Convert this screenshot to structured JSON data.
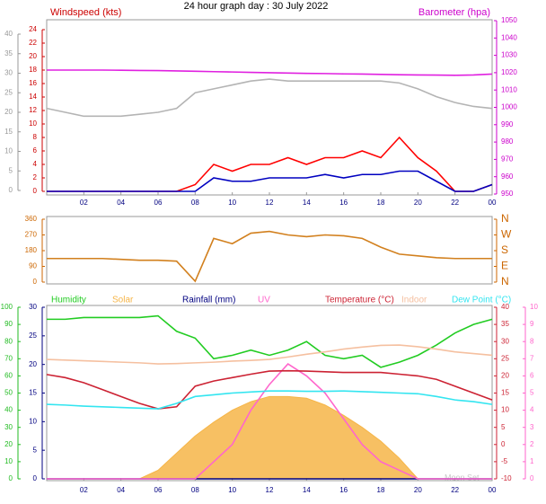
{
  "chart_data": [
    {
      "type": "line",
      "title": "24 hour graph day : 30 July 2022",
      "ylabel": "Windspeed (kts)",
      "y2label": "Barometer (hpa)",
      "x": [
        0,
        1,
        2,
        3,
        4,
        5,
        6,
        7,
        8,
        9,
        10,
        11,
        12,
        13,
        14,
        15,
        16,
        17,
        18,
        19,
        20,
        21,
        22,
        23,
        24
      ],
      "xlim": [
        0,
        24
      ],
      "xticks": [
        {
          "value": 2,
          "label": "02"
        },
        {
          "value": 4,
          "label": "04"
        },
        {
          "value": 6,
          "label": "06"
        },
        {
          "value": 8,
          "label": "08"
        },
        10,
        12,
        14,
        16,
        18,
        20,
        22,
        {
          "value": 24,
          "label": "00"
        }
      ],
      "ylim": [
        0,
        24
      ],
      "yticks": [
        0,
        2,
        4,
        6,
        8,
        10,
        12,
        14,
        16,
        18,
        20,
        22,
        24
      ],
      "y2lim": [
        950,
        1050
      ],
      "y2ticks": [
        950,
        960,
        970,
        980,
        990,
        1000,
        1010,
        1020,
        1030,
        1040,
        1050
      ],
      "y3lim": [
        0,
        40
      ],
      "y3ticks": [
        0,
        5,
        10,
        15,
        20,
        25,
        30,
        35,
        40
      ],
      "series": [
        {
          "color": "#b4b4b4",
          "axis": "y3",
          "values": [
            21,
            20,
            19,
            19,
            19,
            19.5,
            20,
            21,
            25,
            26,
            27,
            28,
            28.5,
            28,
            28,
            28,
            28,
            28,
            28,
            27.5,
            26,
            24,
            22.5,
            21.5,
            21
          ]
        },
        {
          "color": "#e020e0",
          "axis": "y2",
          "values": [
            1021.5,
            1021.5,
            1021.5,
            1021.5,
            1021.4,
            1021.3,
            1021.2,
            1021,
            1020.8,
            1020.6,
            1020.4,
            1020.2,
            1020,
            1019.8,
            1019.6,
            1019.5,
            1019.3,
            1019.2,
            1019,
            1018.8,
            1018.7,
            1018.6,
            1018.5,
            1018.7,
            1019.2
          ]
        },
        {
          "color": "#ff0000",
          "values": [
            0,
            0,
            0,
            0,
            0,
            0,
            0,
            0,
            1,
            4,
            3,
            4,
            4,
            5,
            4,
            5,
            5,
            6,
            5,
            8,
            5,
            3,
            0,
            0,
            1
          ]
        },
        {
          "color": "#0000c0",
          "values": [
            0,
            0,
            0,
            0,
            0,
            0,
            0,
            0,
            0,
            2,
            1.5,
            1.5,
            2,
            2,
            2,
            2.5,
            2,
            2.5,
            2.5,
            3,
            3,
            1.5,
            0,
            0,
            1
          ]
        }
      ]
    },
    {
      "type": "line",
      "x": [
        0,
        1,
        2,
        3,
        4,
        5,
        6,
        7,
        8,
        9,
        10,
        11,
        12,
        13,
        14,
        15,
        16,
        17,
        18,
        19,
        20,
        21,
        22,
        23,
        24
      ],
      "xlim": [
        0,
        24
      ],
      "ylim": [
        0,
        360
      ],
      "yticks": [
        0,
        90,
        180,
        270,
        360
      ],
      "y2lim": [
        0,
        360
      ],
      "y2ticks": [
        {
          "value": 0,
          "label": "N"
        },
        {
          "value": 90,
          "label": "E"
        },
        {
          "value": 180,
          "label": "S"
        },
        {
          "value": 270,
          "label": "W"
        },
        {
          "value": 360,
          "label": "N"
        }
      ],
      "series": [
        {
          "color": "#d2801e",
          "values": [
            135,
            135,
            135,
            135,
            130,
            125,
            125,
            120,
            5,
            250,
            220,
            280,
            290,
            270,
            260,
            270,
            265,
            250,
            200,
            160,
            150,
            140,
            135,
            135,
            135
          ]
        }
      ]
    },
    {
      "type": "line",
      "annotation": "Moon Set",
      "x": [
        0,
        1,
        2,
        3,
        4,
        5,
        6,
        7,
        8,
        9,
        10,
        11,
        12,
        13,
        14,
        15,
        16,
        17,
        18,
        19,
        20,
        21,
        22,
        23,
        24
      ],
      "xlim": [
        0,
        24
      ],
      "xticks": [
        {
          "value": 2,
          "label": "02"
        },
        {
          "value": 4,
          "label": "04"
        },
        {
          "value": 6,
          "label": "06"
        },
        {
          "value": 8,
          "label": "08"
        },
        10,
        12,
        14,
        16,
        18,
        20,
        22,
        {
          "value": 24,
          "label": "00"
        }
      ],
      "ylim": [
        0,
        100
      ],
      "yticks": [
        0,
        10,
        20,
        30,
        40,
        50,
        60,
        70,
        80,
        90,
        100
      ],
      "y2lim": [
        -10,
        40
      ],
      "y2ticks": [
        -10,
        -5,
        0,
        5,
        10,
        15,
        20,
        25,
        30,
        35,
        40
      ],
      "y3lim": [
        0,
        30
      ],
      "y3ticks": [
        0,
        5,
        10,
        15,
        20,
        25,
        30
      ],
      "y4lim": [
        0,
        10
      ],
      "y4ticks": [
        0,
        1,
        2,
        3,
        4,
        5,
        6,
        7,
        8,
        9,
        10
      ],
      "series": [
        {
          "name": "Solar",
          "color": "#f6b548",
          "type": "area",
          "values": [
            0,
            0,
            0,
            0,
            0,
            0,
            5,
            15,
            25,
            33,
            40,
            45,
            48,
            48,
            47,
            43,
            37,
            30,
            22,
            12,
            0,
            0,
            0,
            0,
            0
          ]
        },
        {
          "name": "Humidity",
          "color": "#22cc22",
          "values": [
            93,
            93,
            94,
            94,
            94,
            94,
            95,
            86,
            82,
            70,
            72,
            75,
            72,
            75,
            80,
            72,
            70,
            72,
            65,
            68,
            72,
            78,
            85,
            90,
            93
          ]
        },
        {
          "name": "Rainfall (mm)",
          "color": "#000080",
          "axis": "y3",
          "values": [
            0,
            0,
            0,
            0,
            0,
            0,
            0,
            0,
            0,
            0,
            0,
            0,
            0,
            0,
            0,
            0,
            0,
            0,
            0,
            0,
            0,
            0,
            0,
            0,
            0
          ]
        },
        {
          "name": "UV",
          "color": "#ff66cc",
          "axis": "y4",
          "values": [
            0,
            0,
            0,
            0,
            0,
            0,
            0,
            0,
            0,
            1,
            2,
            4,
            5.5,
            6.7,
            6,
            5,
            3.5,
            2,
            1,
            0.5,
            0,
            0,
            0,
            0,
            0
          ]
        },
        {
          "name": "Temperature (°C)",
          "color": "#cc2233",
          "axis": "y2",
          "values": [
            20.4,
            19.5,
            18,
            16,
            14,
            12,
            10.4,
            11,
            17,
            18.5,
            19.5,
            20.5,
            21.4,
            21.5,
            21.4,
            21.2,
            21,
            21,
            21,
            20.5,
            20,
            19,
            17,
            15,
            13
          ]
        },
        {
          "name": "Indoor",
          "color": "#f5c0a0",
          "axis": "y2",
          "values": [
            24.8,
            24.6,
            24.4,
            24.2,
            24,
            23.8,
            23.5,
            23.6,
            23.8,
            24,
            24.3,
            24.5,
            24.8,
            25.5,
            26.3,
            27,
            27.8,
            28.4,
            28.9,
            29,
            28.5,
            27.8,
            27,
            26.5,
            26
          ]
        },
        {
          "name": "Dew Point (°C)",
          "color": "#33e5f0",
          "axis": "y2",
          "values": [
            11.7,
            11.5,
            11.2,
            11,
            10.8,
            10.6,
            10.4,
            12,
            14,
            14.5,
            15,
            15.3,
            15.6,
            15.6,
            15.5,
            15.5,
            15.6,
            15.4,
            15.2,
            15,
            14.8,
            14,
            13,
            12.5,
            11.7
          ]
        }
      ]
    }
  ]
}
